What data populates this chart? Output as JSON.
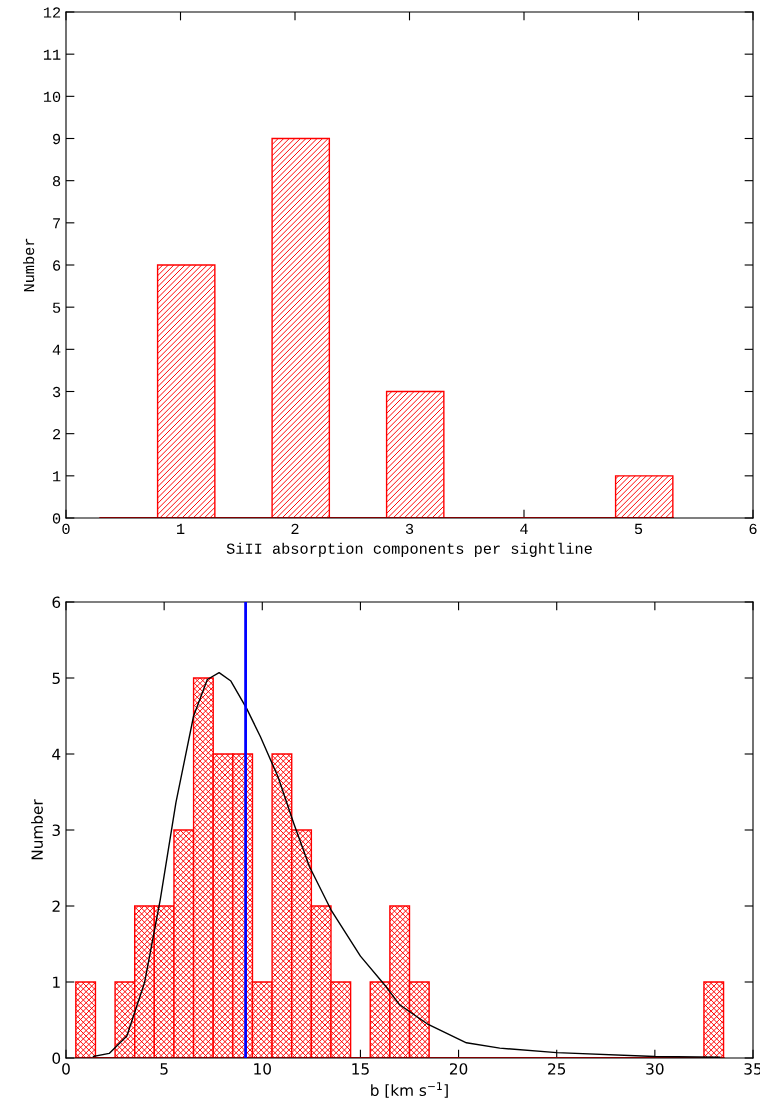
{
  "chart_data": [
    {
      "type": "histogram",
      "xlabel": "SiII absorption components per sightline",
      "ylabel": "Number",
      "color": "#ff0000",
      "bins": [
        0.3,
        0.8,
        1.3,
        1.8,
        2.3,
        2.8,
        3.3,
        3.8,
        4.3,
        4.8,
        5.3
      ],
      "values": [
        0,
        6,
        0,
        9,
        0,
        3,
        0,
        0,
        0,
        1
      ],
      "xlim": [
        0,
        6
      ],
      "xticks": [
        0,
        1,
        2,
        3,
        4,
        5,
        6
      ],
      "ylim": [
        0,
        12
      ],
      "yticks": [
        0,
        1,
        2,
        3,
        4,
        5,
        6,
        7,
        8,
        9,
        10,
        11,
        12
      ],
      "grid": false,
      "legend": false
    },
    {
      "type": "histogram",
      "xlabel": "b [km s$^{−1}$]",
      "ylabel": "Number",
      "bins": [
        0.5,
        1.5,
        2.5,
        3.5,
        4.5,
        5.5,
        6.5,
        7.5,
        8.5,
        9.5,
        10.5,
        11.5,
        12.5,
        13.5,
        14.5,
        15.5,
        16.5,
        17.5,
        18.5,
        19.5,
        20.5,
        21.5,
        22.5,
        23.5,
        24.5,
        25.5,
        26.5,
        27.5,
        28.5,
        29.5,
        30.5,
        31.5,
        32.5,
        33.5
      ],
      "series": [
        {
          "type": "histogram",
          "color": "#ff0000",
          "values": [
            1,
            0,
            1,
            2,
            2,
            3,
            5,
            4,
            4,
            1,
            4,
            3,
            2,
            1,
            0,
            1,
            2,
            1,
            0,
            0,
            0,
            0,
            0,
            0,
            0,
            0,
            0,
            0,
            0,
            0,
            0,
            0,
            1
          ]
        },
        {
          "type": "line",
          "color": "#000000",
          "x": [
            1.4,
            2.2,
            3.1,
            4.0,
            4.8,
            5.6,
            6.5,
            7.2,
            7.8,
            8.4,
            9.2,
            9.9,
            10.8,
            11.6,
            12.4,
            13.5,
            15.0,
            16.3,
            17.0,
            18.4,
            20.4,
            22.1,
            25.0,
            30.0,
            33.3
          ],
          "values": [
            0.02,
            0.06,
            0.29,
            0.99,
            2.08,
            3.36,
            4.5,
            4.98,
            5.07,
            4.96,
            4.6,
            4.23,
            3.7,
            3.09,
            2.52,
            1.95,
            1.34,
            0.94,
            0.7,
            0.45,
            0.2,
            0.13,
            0.07,
            0.02,
            0.01
          ]
        }
      ],
      "ref_lines": [
        {
          "axis": "x",
          "value": 9.15,
          "color": "#0000ff"
        }
      ],
      "xlim": [
        0,
        35
      ],
      "xticks": [
        0,
        5,
        10,
        15,
        20,
        25,
        30,
        35
      ],
      "ylim": [
        0,
        6
      ],
      "yticks": [
        0,
        1,
        2,
        3,
        4,
        5,
        6
      ],
      "grid": false,
      "legend": false
    }
  ]
}
